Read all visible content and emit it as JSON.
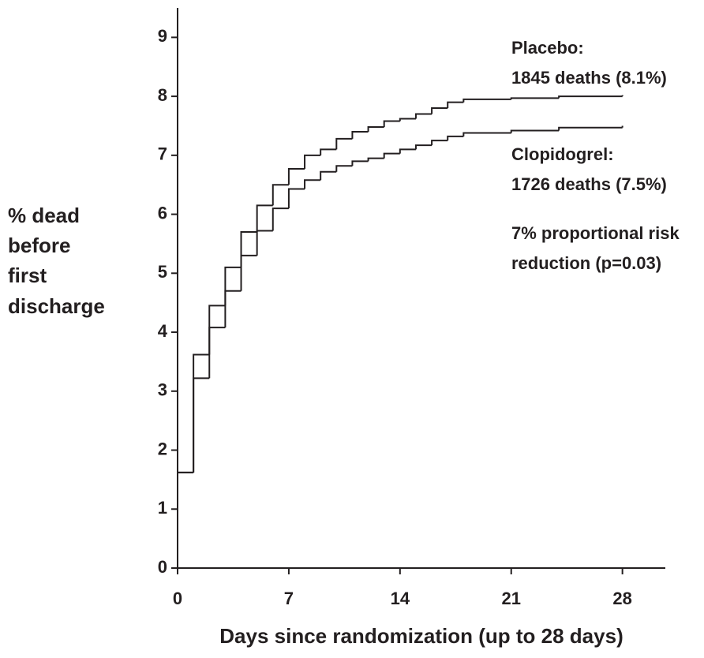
{
  "chart_data": {
    "type": "step",
    "ylabel": [
      "% dead",
      "before",
      "first",
      "discharge"
    ],
    "xlabel": "Days since randomization (up to 28 days)",
    "x": [
      0,
      1,
      2,
      3,
      4,
      5,
      6,
      7,
      8,
      9,
      10,
      11,
      12,
      13,
      14,
      15,
      16,
      17,
      18,
      21,
      24,
      28
    ],
    "series": [
      {
        "name": "Placebo:",
        "color": "#231f20",
        "values": [
          1.62,
          3.62,
          4.45,
          5.1,
          5.7,
          6.15,
          6.5,
          6.77,
          7.0,
          7.1,
          7.28,
          7.4,
          7.48,
          7.58,
          7.62,
          7.7,
          7.8,
          7.9,
          7.95,
          7.97,
          8.0,
          8.02
        ]
      },
      {
        "name": "Clopidogrel:",
        "color": "#231f20",
        "values": [
          1.62,
          3.22,
          4.08,
          4.7,
          5.3,
          5.72,
          6.1,
          6.43,
          6.58,
          6.72,
          6.82,
          6.9,
          6.95,
          7.03,
          7.1,
          7.17,
          7.25,
          7.32,
          7.38,
          7.42,
          7.47,
          7.5
        ]
      }
    ],
    "annotations": [
      "1845 deaths (8.1%)",
      "1726 deaths (7.5%)",
      "7% proportional risk",
      "reduction (p=0.03)"
    ],
    "xlim": [
      0,
      30.7
    ],
    "ylim": [
      0,
      9.5
    ],
    "xticks": [
      0,
      7,
      14,
      21,
      28
    ],
    "yticks": [
      0,
      1,
      2,
      3,
      4,
      5,
      6,
      7,
      8,
      9
    ]
  }
}
